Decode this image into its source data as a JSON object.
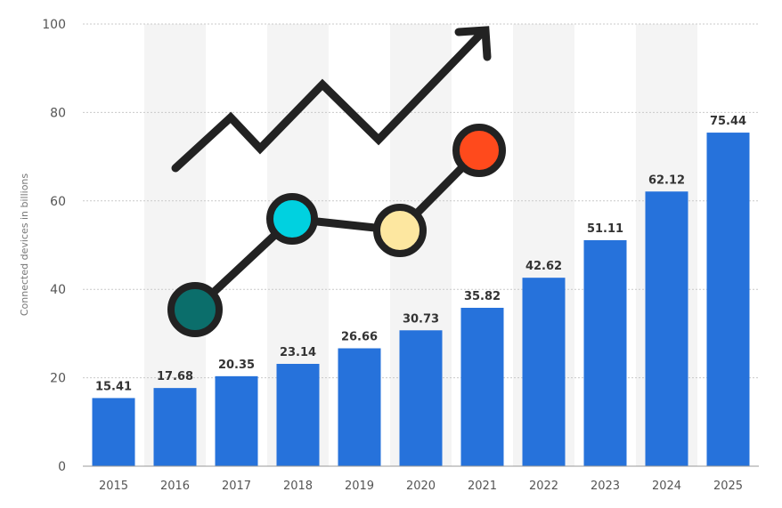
{
  "chart_data": {
    "type": "bar",
    "categories": [
      "2015",
      "2016",
      "2017",
      "2018",
      "2019",
      "2020",
      "2021",
      "2022",
      "2023",
      "2024",
      "2025"
    ],
    "values": [
      15.41,
      17.68,
      20.35,
      23.14,
      26.66,
      30.73,
      35.82,
      42.62,
      51.11,
      62.12,
      75.44
    ],
    "data_labels": [
      "15.41",
      "17.68",
      "20.35",
      "23.14",
      "26.66",
      "30.73",
      "35.82",
      "42.62",
      "51.11",
      "62.12",
      "75.44"
    ],
    "title": "",
    "xlabel": "",
    "ylabel": "Connected devices in billions",
    "ylim": [
      0,
      100
    ],
    "yticks": [
      "0",
      "20",
      "40",
      "60",
      "80",
      "100"
    ],
    "grid": true,
    "bar_color": "#2672db",
    "decoration": {
      "icon": "growth-chart-icon",
      "line_color": "#222222",
      "dot_colors": [
        "#0b6e6b",
        "#00d1e0",
        "#fde7a0",
        "#ff4a1c"
      ]
    }
  }
}
